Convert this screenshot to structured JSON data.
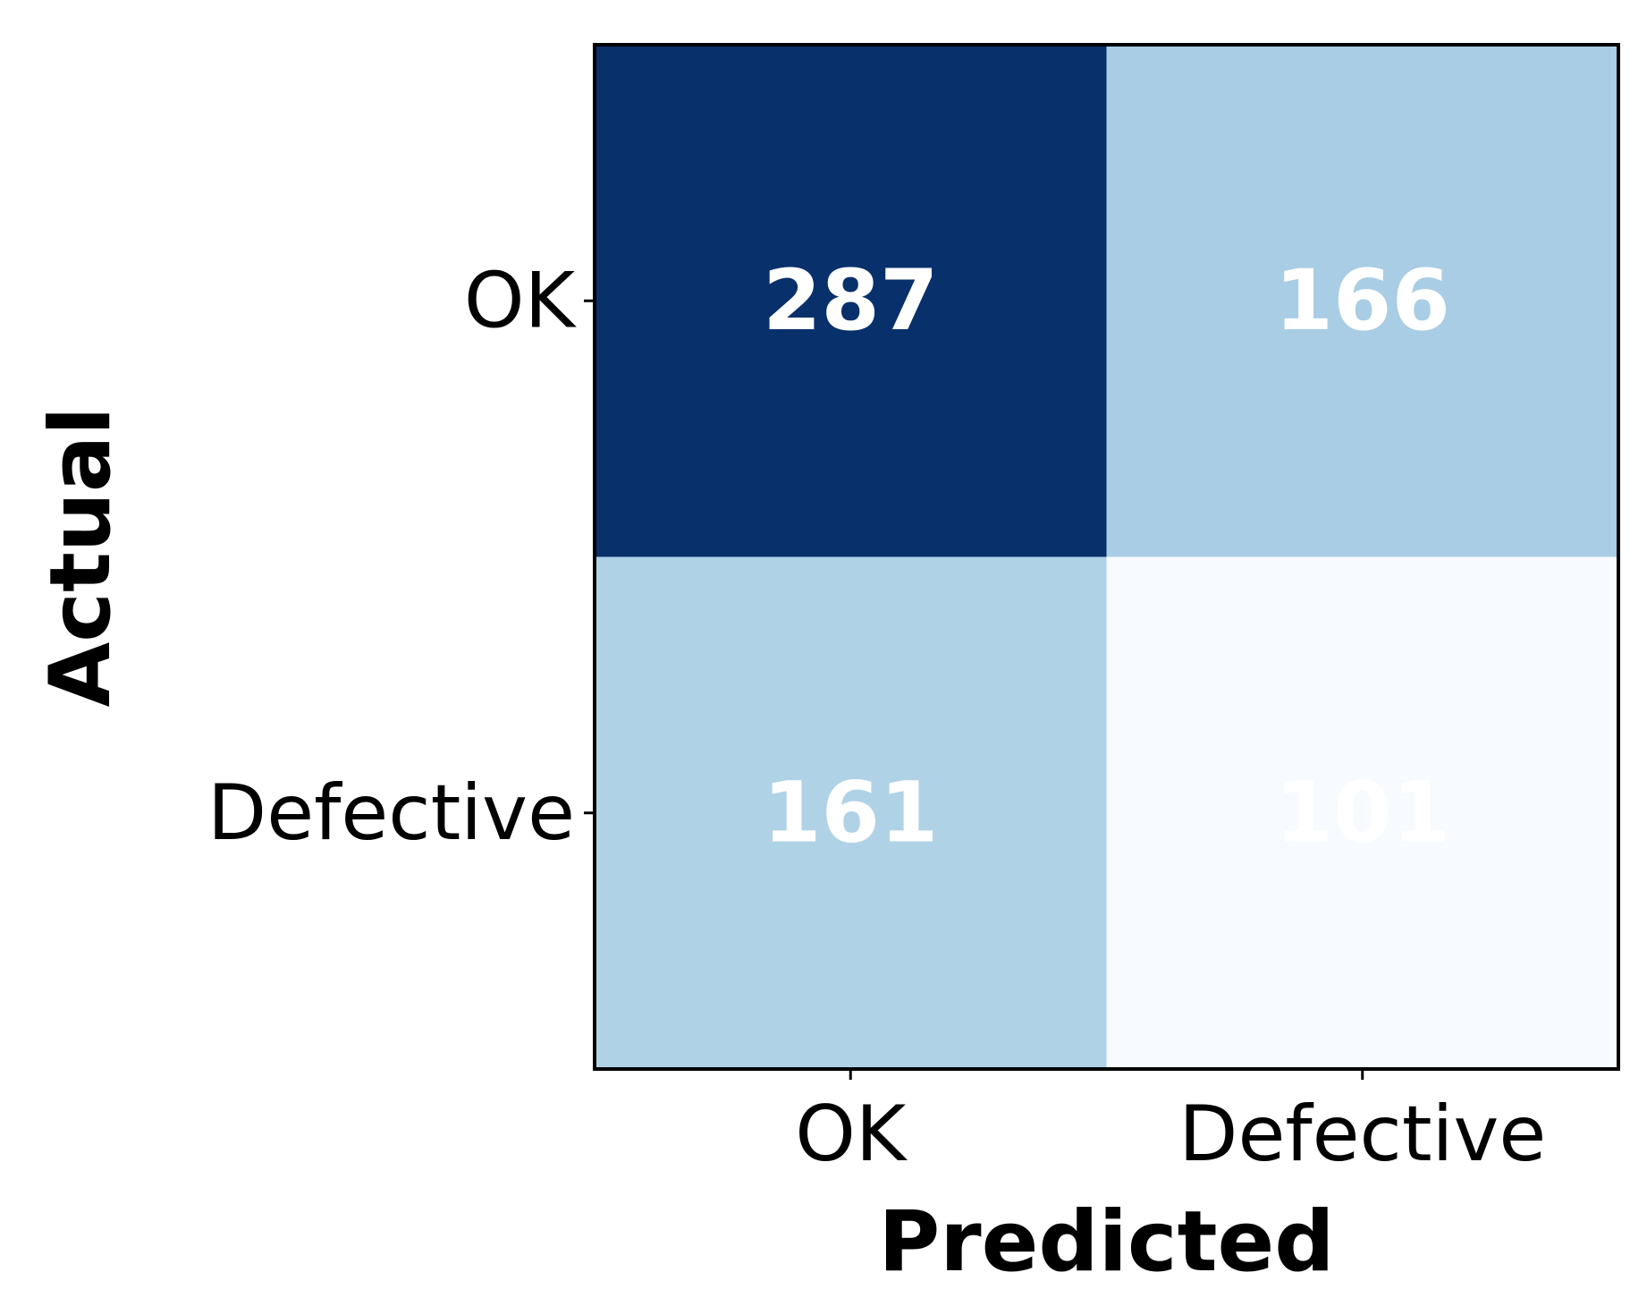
{
  "chart_data": {
    "type": "heatmap",
    "title": "",
    "xlabel": "Predicted",
    "ylabel": "Actual",
    "x_categories": [
      "OK",
      "Defective"
    ],
    "y_categories": [
      "OK",
      "Defective"
    ],
    "values": [
      [
        287,
        166
      ],
      [
        161,
        101
      ]
    ],
    "colormap": "Blues",
    "color_scale": [
      {
        "value": 101,
        "color": "#f7fbff"
      },
      {
        "value": 161,
        "color": "#b0d2e7"
      },
      {
        "value": 166,
        "color": "#a9cde4"
      },
      {
        "value": 287,
        "color": "#08306b"
      }
    ],
    "value_label_color": "#ffffff",
    "grid": false,
    "legend": "none"
  }
}
